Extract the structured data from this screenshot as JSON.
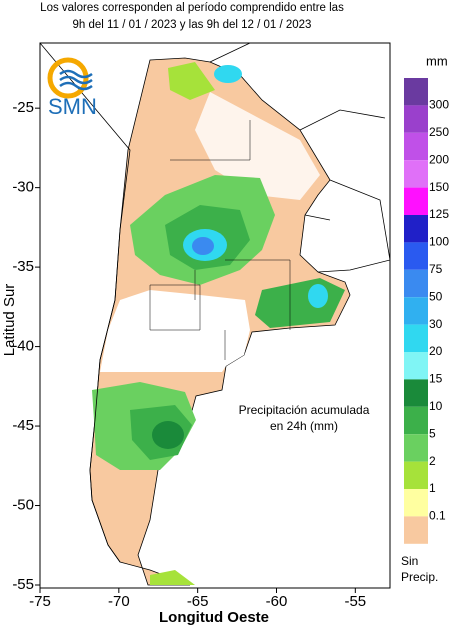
{
  "header": {
    "title_lines": [
      "Los valores corresponden al período comprendido entre las",
      "9h del 11 / 01 / 2023  y las 9h del 12 / 01 / 2023"
    ]
  },
  "logo": {
    "text": "SMN"
  },
  "axes": {
    "xlabel": "Longitud Oeste",
    "ylabel": "Latitud Sur",
    "xlim": [
      -75,
      -52.8
    ],
    "ylim": [
      -55,
      -20.9
    ],
    "xticks": [
      -75,
      -70,
      -65,
      -60,
      -55
    ],
    "yticks": [
      -55,
      -50,
      -45,
      -40,
      -35,
      -30,
      -25
    ]
  },
  "annotation": [
    "Precipitación acumulada",
    "en 24h (mm)"
  ],
  "legend": {
    "unit": "mm",
    "labels": [
      300,
      250,
      200,
      150,
      125,
      100,
      75,
      50,
      30,
      20,
      15,
      10,
      5,
      2,
      1,
      0.1
    ],
    "colors": [
      "#6a3aa0",
      "#9a40cc",
      "#c050e8",
      "#e070f8",
      "#ff10ff",
      "#2020c8",
      "#2a5af0",
      "#3a8af0",
      "#30b0f0",
      "#30d8f0",
      "#80f5f5",
      "#1a8a3a",
      "#3cb04a",
      "#6ad060",
      "#a6e23a",
      "#ffffa0",
      "#f8c9a0"
    ],
    "no_precip": [
      "Sin",
      "Precip."
    ]
  }
}
